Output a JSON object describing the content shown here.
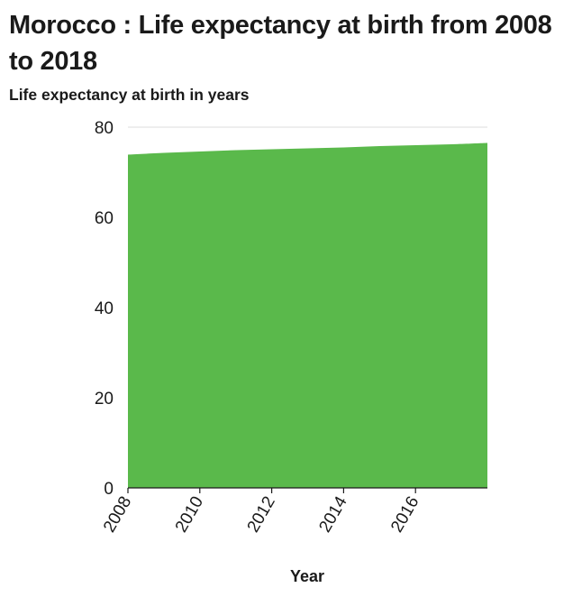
{
  "chart_data": {
    "type": "area",
    "title": "Morocco : Life expectancy at birth from 2008 to 2018",
    "ylabel": "Life expectancy at birth in years",
    "xlabel": "Year",
    "x": [
      2008,
      2009,
      2010,
      2011,
      2012,
      2013,
      2014,
      2015,
      2016,
      2017,
      2018
    ],
    "series": [
      {
        "values": [
          73.9,
          74.3,
          74.6,
          74.9,
          75.1,
          75.3,
          75.5,
          75.8,
          76.0,
          76.2,
          76.5
        ],
        "color": "#5ab94b"
      }
    ],
    "xlim": [
      2008,
      2018
    ],
    "ylim": [
      0,
      80
    ],
    "x_ticks": [
      "2008",
      "2010",
      "2012",
      "2014",
      "2016"
    ],
    "y_ticks": [
      "0",
      "20",
      "40",
      "60",
      "80"
    ],
    "grid": "horizontal",
    "legend": "none"
  }
}
